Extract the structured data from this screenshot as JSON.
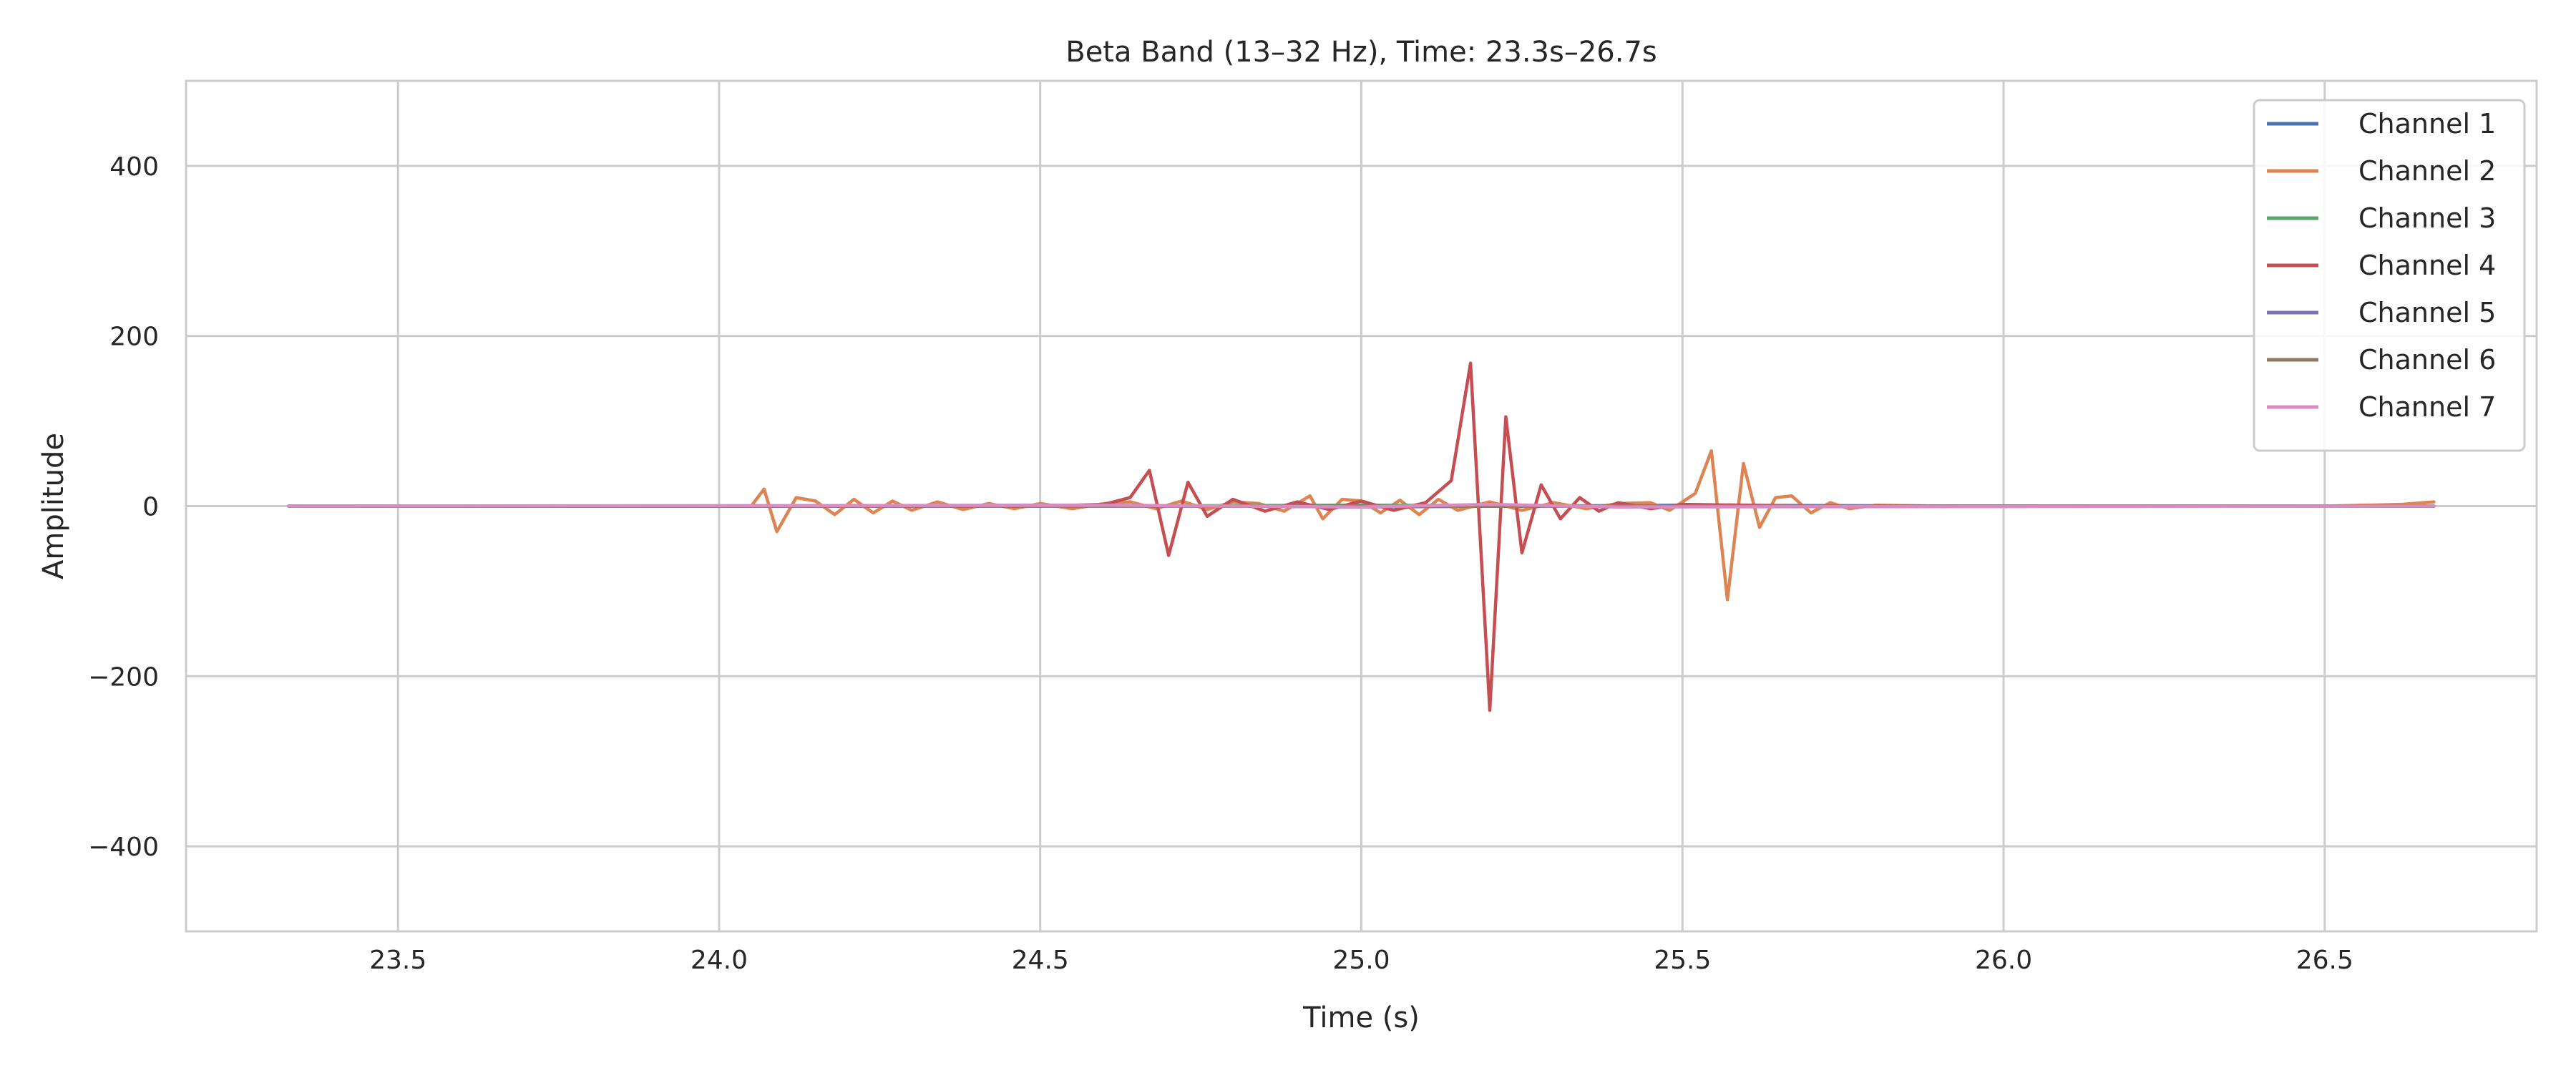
{
  "chart_data": {
    "type": "line",
    "title": "Beta Band (13–32 Hz), Time: 23.3s–26.7s",
    "xlabel": "Time (s)",
    "ylabel": "Amplitude",
    "xlim": [
      23.17,
      26.83
    ],
    "ylim": [
      -500,
      500
    ],
    "xticks": [
      23.5,
      24.0,
      24.5,
      25.0,
      25.5,
      26.0,
      26.5
    ],
    "xtick_labels": [
      "23.5",
      "24.0",
      "24.5",
      "25.0",
      "25.5",
      "26.0",
      "26.5"
    ],
    "yticks": [
      -400,
      -200,
      0,
      200,
      400
    ],
    "ytick_labels": [
      "−400",
      "−200",
      "0",
      "200",
      "400"
    ],
    "grid": true,
    "legend_position": "top-right",
    "series": [
      {
        "name": "Channel 1",
        "color": "#4c72b0",
        "x": [
          23.33,
          24.0,
          24.5,
          25.0,
          25.5,
          26.0,
          26.67
        ],
        "y": [
          0,
          0,
          1,
          -1,
          1,
          0,
          0
        ]
      },
      {
        "name": "Channel 2",
        "color": "#dd8452",
        "x": [
          23.33,
          24.05,
          24.07,
          24.09,
          24.12,
          24.15,
          24.18,
          24.21,
          24.24,
          24.27,
          24.3,
          24.34,
          24.38,
          24.42,
          24.46,
          24.5,
          24.55,
          24.6,
          24.64,
          24.68,
          24.72,
          24.76,
          24.8,
          24.84,
          24.88,
          24.92,
          24.94,
          24.97,
          25.0,
          25.03,
          25.06,
          25.09,
          25.12,
          25.15,
          25.2,
          25.25,
          25.3,
          25.35,
          25.4,
          25.45,
          25.48,
          25.5,
          25.52,
          25.545,
          25.57,
          25.595,
          25.62,
          25.645,
          25.67,
          25.7,
          25.73,
          25.76,
          25.8,
          25.9,
          26.0,
          26.5,
          26.62,
          26.67
        ],
        "y": [
          0,
          0,
          20,
          -30,
          10,
          6,
          -10,
          8,
          -8,
          6,
          -5,
          5,
          -4,
          3,
          -3,
          3,
          -3,
          3,
          5,
          -3,
          6,
          -4,
          5,
          3,
          -6,
          12,
          -15,
          8,
          6,
          -8,
          7,
          -10,
          8,
          -5,
          5,
          -5,
          4,
          -3,
          3,
          4,
          -5,
          5,
          15,
          65,
          -110,
          50,
          -25,
          10,
          12,
          -8,
          4,
          -3,
          1,
          0,
          0,
          0,
          2,
          5
        ]
      },
      {
        "name": "Channel 3",
        "color": "#55a868",
        "x": [
          23.33,
          24.5,
          25.0,
          25.5,
          26.67
        ],
        "y": [
          0,
          0,
          1,
          0,
          0
        ]
      },
      {
        "name": "Channel 4",
        "color": "#c44e52",
        "x": [
          23.33,
          24.5,
          24.6,
          24.64,
          24.67,
          24.7,
          24.73,
          24.76,
          24.8,
          24.85,
          24.9,
          24.95,
          25.0,
          25.05,
          25.1,
          25.14,
          25.17,
          25.2,
          25.225,
          25.25,
          25.28,
          25.31,
          25.34,
          25.37,
          25.4,
          25.45,
          25.5,
          25.6,
          25.7,
          26.0,
          26.67
        ],
        "y": [
          0,
          0,
          2,
          10,
          42,
          -58,
          28,
          -12,
          8,
          -6,
          5,
          -4,
          6,
          -5,
          4,
          30,
          168,
          -240,
          105,
          -55,
          25,
          -15,
          10,
          -6,
          4,
          -3,
          2,
          1,
          0,
          0,
          0
        ]
      },
      {
        "name": "Channel 5",
        "color": "#8172b3",
        "x": [
          23.33,
          25.0,
          26.67
        ],
        "y": [
          0,
          0,
          0
        ]
      },
      {
        "name": "Channel 6",
        "color": "#937860",
        "x": [
          23.33,
          25.0,
          26.67
        ],
        "y": [
          0,
          0,
          0
        ]
      },
      {
        "name": "Channel 7",
        "color": "#da8bc3",
        "x": [
          23.33,
          24.6,
          25.0,
          25.2,
          25.4,
          26.67
        ],
        "y": [
          0,
          1,
          -1,
          2,
          -1,
          0
        ]
      }
    ]
  }
}
